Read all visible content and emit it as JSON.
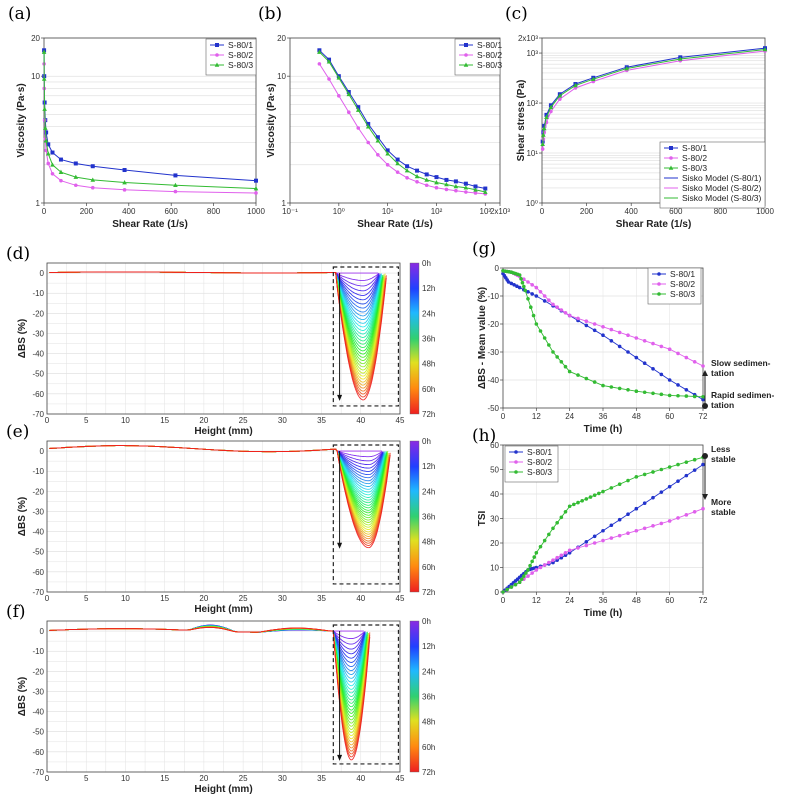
{
  "colors": {
    "s1": "#2233cc",
    "s2": "#e060ec",
    "s3": "#33bb33"
  },
  "chart_data": [
    {
      "id": "a",
      "panel_label": "(a)",
      "type": "line",
      "xlabel": "Shear Rate (1/s)",
      "ylabel": "Viscosity (Pa·s)",
      "xlim": [
        0,
        1000
      ],
      "ylim": [
        1,
        20
      ],
      "yscale": "log",
      "xticks": [
        "0",
        "200",
        "400",
        "600",
        "800",
        "1000"
      ],
      "yticks": [
        "1",
        "10",
        "20"
      ],
      "series": [
        {
          "name": "S-80/1",
          "x": [
            0.4,
            1,
            3,
            6,
            10,
            20,
            40,
            80,
            150,
            230,
            380,
            620,
            1000
          ],
          "y": [
            16,
            10,
            6.2,
            4.5,
            3.6,
            2.9,
            2.5,
            2.2,
            2.05,
            1.95,
            1.82,
            1.65,
            1.5
          ]
        },
        {
          "name": "S-80/2",
          "x": [
            0.4,
            1,
            3,
            6,
            10,
            20,
            40,
            80,
            150,
            230,
            380,
            620,
            1000
          ],
          "y": [
            12.5,
            8,
            4.5,
            3.2,
            2.6,
            2.05,
            1.7,
            1.5,
            1.38,
            1.32,
            1.27,
            1.23,
            1.2
          ]
        },
        {
          "name": "S-80/3",
          "x": [
            0.4,
            1,
            3,
            6,
            10,
            20,
            40,
            80,
            150,
            230,
            380,
            620,
            1000
          ],
          "y": [
            15.5,
            9.5,
            5.5,
            3.9,
            3.1,
            2.45,
            2.0,
            1.75,
            1.6,
            1.52,
            1.45,
            1.38,
            1.3
          ]
        }
      ]
    },
    {
      "id": "b",
      "panel_label": "(b)",
      "type": "line",
      "xlabel": "Shear Rate (1/s)",
      "ylabel": "Viscosity (Pa·s)",
      "xscale": "log",
      "yscale": "log",
      "xlim": [
        0.1,
        2000
      ],
      "ylim": [
        1,
        20
      ],
      "xticks": [
        "10⁻¹",
        "10⁰",
        "10¹",
        "10²",
        "10³",
        "2x10³"
      ],
      "yticks": [
        "1",
        "10",
        "20"
      ],
      "series": [
        {
          "name": "S-80/1",
          "x": [
            0.4,
            0.63,
            1,
            1.6,
            2.5,
            4,
            6.3,
            10,
            16,
            25,
            40,
            63,
            100,
            160,
            250,
            400,
            630,
            1000
          ],
          "y": [
            16,
            13.5,
            10,
            7.5,
            5.7,
            4.2,
            3.3,
            2.6,
            2.2,
            1.95,
            1.8,
            1.68,
            1.6,
            1.52,
            1.48,
            1.42,
            1.35,
            1.3
          ]
        },
        {
          "name": "S-80/2",
          "x": [
            0.4,
            0.63,
            1,
            1.6,
            2.5,
            4,
            6.3,
            10,
            16,
            25,
            40,
            63,
            100,
            160,
            250,
            400,
            630,
            1000
          ],
          "y": [
            12.5,
            9.5,
            7,
            5.2,
            3.9,
            3.0,
            2.4,
            2.0,
            1.75,
            1.58,
            1.47,
            1.38,
            1.32,
            1.28,
            1.25,
            1.22,
            1.2,
            1.18
          ]
        },
        {
          "name": "S-80/3",
          "x": [
            0.4,
            0.63,
            1,
            1.6,
            2.5,
            4,
            6.3,
            10,
            16,
            25,
            40,
            63,
            100,
            160,
            250,
            400,
            630,
            1000
          ],
          "y": [
            15.5,
            13,
            9.7,
            7.2,
            5.4,
            4.0,
            3.1,
            2.45,
            2.05,
            1.8,
            1.62,
            1.52,
            1.45,
            1.4,
            1.35,
            1.32,
            1.27,
            1.22
          ]
        }
      ]
    },
    {
      "id": "c",
      "panel_label": "(c)",
      "type": "line",
      "xlabel": "Shear Rate (1/s)",
      "ylabel": "Shear stress (Pa)",
      "yscale": "log",
      "xlim": [
        0,
        1000
      ],
      "ylim": [
        1,
        2000
      ],
      "xticks": [
        "0",
        "200",
        "400",
        "600",
        "800",
        "1000"
      ],
      "yticks": [
        "10⁰",
        "10¹",
        "10²",
        "10³",
        "2x10³"
      ],
      "series": [
        {
          "name": "S-80/1",
          "x": [
            3,
            6,
            10,
            20,
            40,
            80,
            150,
            230,
            380,
            620,
            1000
          ],
          "y": [
            17,
            26,
            35,
            58,
            90,
            150,
            240,
            320,
            520,
            820,
            1250
          ]
        },
        {
          "name": "S-80/2",
          "x": [
            3,
            6,
            10,
            20,
            40,
            80,
            150,
            230,
            380,
            620,
            1000
          ],
          "y": [
            12,
            19,
            26,
            41,
            68,
            120,
            200,
            270,
            450,
            700,
            1100
          ]
        },
        {
          "name": "S-80/3",
          "x": [
            3,
            6,
            10,
            20,
            40,
            80,
            150,
            230,
            380,
            620,
            1000
          ],
          "y": [
            15,
            23,
            31,
            52,
            82,
            140,
            225,
            300,
            490,
            760,
            1180
          ]
        }
      ],
      "legend_extra": [
        "Sisko Model (S-80/1)",
        "Sisko Model (S-80/2)",
        "Sisko Model (S-80/3)"
      ]
    },
    {
      "id": "d",
      "panel_label": "(d)",
      "type": "line",
      "xlabel": "Height (mm)",
      "ylabel": "ΔBS (%)",
      "xlim": [
        0,
        45
      ],
      "ylim": [
        -70,
        5
      ],
      "xticks": [
        "0",
        "5",
        "10",
        "15",
        "20",
        "25",
        "30",
        "35",
        "40",
        "45"
      ],
      "yticks": [
        "0",
        "-10",
        "-20",
        "-30",
        "-40",
        "-50",
        "-60",
        "-70"
      ],
      "colorbar": [
        "0h",
        "12h",
        "24h",
        "36h",
        "48h",
        "60h",
        "72h"
      ],
      "dip": {
        "start": 36.8,
        "center": 40.3,
        "end": 43.3,
        "max_depth": -63
      }
    },
    {
      "id": "e",
      "panel_label": "(e)",
      "type": "line",
      "xlabel": "Height (mm)",
      "ylabel": "ΔBS (%)",
      "xlim": [
        0,
        45
      ],
      "ylim": [
        -70,
        5
      ],
      "xticks": [
        "0",
        "5",
        "10",
        "15",
        "20",
        "25",
        "30",
        "35",
        "40",
        "45"
      ],
      "yticks": [
        "0",
        "-10",
        "-20",
        "-30",
        "-40",
        "-50",
        "-60",
        "-70"
      ],
      "colorbar": [
        "0h",
        "12h",
        "24h",
        "36h",
        "48h",
        "60h",
        "72h"
      ],
      "dip": {
        "start": 37,
        "center": 41,
        "end": 43.8,
        "max_depth": -48
      }
    },
    {
      "id": "f",
      "panel_label": "(f)",
      "type": "line",
      "xlabel": "Height (mm)",
      "ylabel": "ΔBS (%)",
      "xlim": [
        0,
        45
      ],
      "ylim": [
        -70,
        5
      ],
      "xticks": [
        "0",
        "5",
        "10",
        "15",
        "20",
        "25",
        "30",
        "35",
        "40",
        "45"
      ],
      "yticks": [
        "0",
        "-10",
        "-20",
        "-30",
        "-40",
        "-50",
        "-60",
        "-70"
      ],
      "colorbar": [
        "0h",
        "12h",
        "24h",
        "36h",
        "48h",
        "60h",
        "72h"
      ],
      "dip": {
        "start": 36.5,
        "center": 38.8,
        "end": 41.2,
        "max_depth": -64
      }
    },
    {
      "id": "g",
      "panel_label": "(g)",
      "type": "line",
      "xlabel": "Time (h)",
      "ylabel": "ΔBS - Mean value (%)",
      "xlim": [
        0,
        72
      ],
      "ylim": [
        -50,
        0
      ],
      "xticks": [
        "0",
        "12",
        "24",
        "36",
        "48",
        "60",
        "72"
      ],
      "yticks": [
        "0",
        "-10",
        "-20",
        "-30",
        "-40",
        "-50"
      ],
      "series": [
        {
          "name": "S-80/1",
          "x": [
            0,
            2,
            6,
            12,
            24,
            36,
            48,
            60,
            72
          ],
          "y": [
            -2,
            -5,
            -7,
            -10,
            -17,
            -24,
            -32,
            -40,
            -47
          ]
        },
        {
          "name": "S-80/2",
          "x": [
            0,
            3,
            6,
            12,
            18,
            24,
            36,
            48,
            60,
            72
          ],
          "y": [
            -1,
            -1.5,
            -3,
            -7,
            -13,
            -17,
            -21,
            -25,
            -29,
            -35
          ]
        },
        {
          "name": "S-80/3",
          "x": [
            0,
            3,
            6,
            8,
            12,
            18,
            24,
            36,
            48,
            60,
            72
          ],
          "y": [
            -1,
            -1.5,
            -2.5,
            -8,
            -20,
            -30,
            -37,
            -42,
            -44,
            -45.5,
            -46
          ]
        }
      ],
      "annotations": [
        "Slow sedimen-tation",
        "Rapid sedimen-tation"
      ]
    },
    {
      "id": "h",
      "panel_label": "(h)",
      "type": "line",
      "xlabel": "Time (h)",
      "ylabel": "TSI",
      "xlim": [
        0,
        72
      ],
      "ylim": [
        0,
        60
      ],
      "xticks": [
        "0",
        "12",
        "24",
        "36",
        "48",
        "60",
        "72"
      ],
      "yticks": [
        "0",
        "10",
        "20",
        "30",
        "40",
        "50",
        "60"
      ],
      "series": [
        {
          "name": "S-80/1",
          "x": [
            0,
            3,
            6,
            9,
            12,
            18,
            24,
            36,
            48,
            60,
            72
          ],
          "y": [
            0,
            3,
            6,
            9,
            10,
            12,
            16,
            25,
            34,
            43,
            52
          ]
        },
        {
          "name": "S-80/2",
          "x": [
            0,
            6,
            12,
            18,
            24,
            36,
            48,
            60,
            72
          ],
          "y": [
            0,
            4,
            9,
            13,
            17,
            21,
            25,
            29,
            34
          ]
        },
        {
          "name": "S-80/3",
          "x": [
            0,
            6,
            9,
            12,
            18,
            24,
            30,
            36,
            48,
            60,
            72
          ],
          "y": [
            0,
            4,
            9,
            16,
            26,
            35,
            38,
            41,
            47,
            51,
            55
          ]
        }
      ],
      "annotations": [
        "Less stable",
        "More stable"
      ]
    }
  ]
}
